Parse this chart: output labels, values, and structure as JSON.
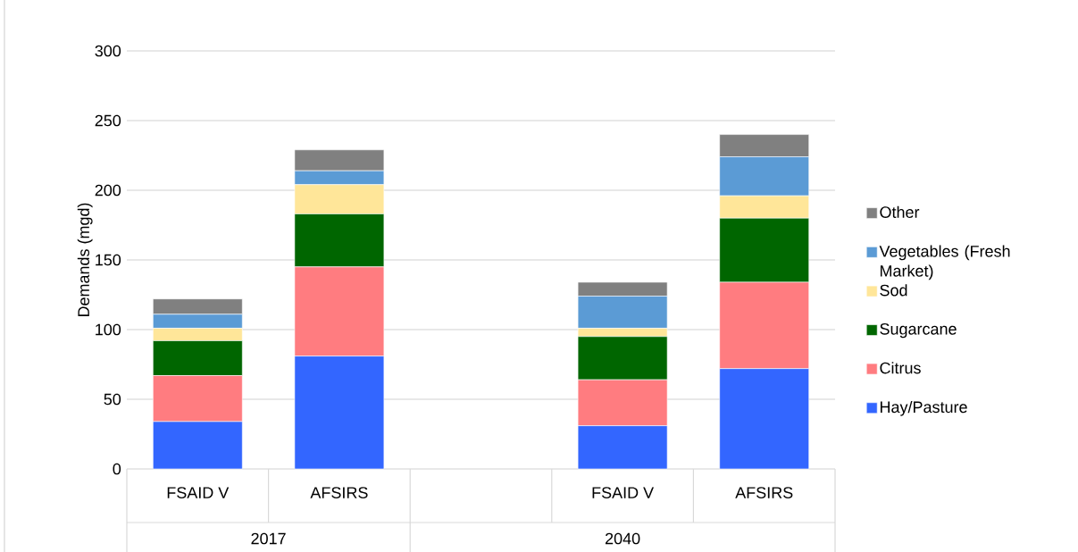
{
  "chart_data": {
    "type": "bar",
    "stacked": true,
    "ylabel": "Demands (mgd)",
    "categories": [
      "FSAID V",
      "AFSIRS",
      null,
      "FSAID V",
      "AFSIRS"
    ],
    "annotations": [
      "2017",
      "2040"
    ],
    "series": [
      {
        "name": "Hay/Pasture",
        "color": "#3366ff",
        "values": [
          34,
          81,
          null,
          31,
          72
        ]
      },
      {
        "name": "Citrus",
        "color": "#ff7c80",
        "values": [
          33,
          64,
          null,
          33,
          62
        ]
      },
      {
        "name": "Sugarcane",
        "color": "#006600",
        "values": [
          25,
          38,
          null,
          31,
          46
        ]
      },
      {
        "name": "Sod",
        "color": "#ffe699",
        "values": [
          9,
          21,
          null,
          6,
          16
        ]
      },
      {
        "name": "Vegetables (Fresh Market)",
        "color": "#5b9bd5",
        "values": [
          10,
          10,
          null,
          23,
          28
        ]
      },
      {
        "name": "Other",
        "color": "#808080",
        "values": [
          11,
          15,
          null,
          10,
          16
        ]
      }
    ],
    "ylim": [
      0,
      300
    ],
    "yticks": [
      0,
      50,
      100,
      150,
      200,
      250,
      300
    ],
    "grid": "y",
    "legend": "right"
  }
}
